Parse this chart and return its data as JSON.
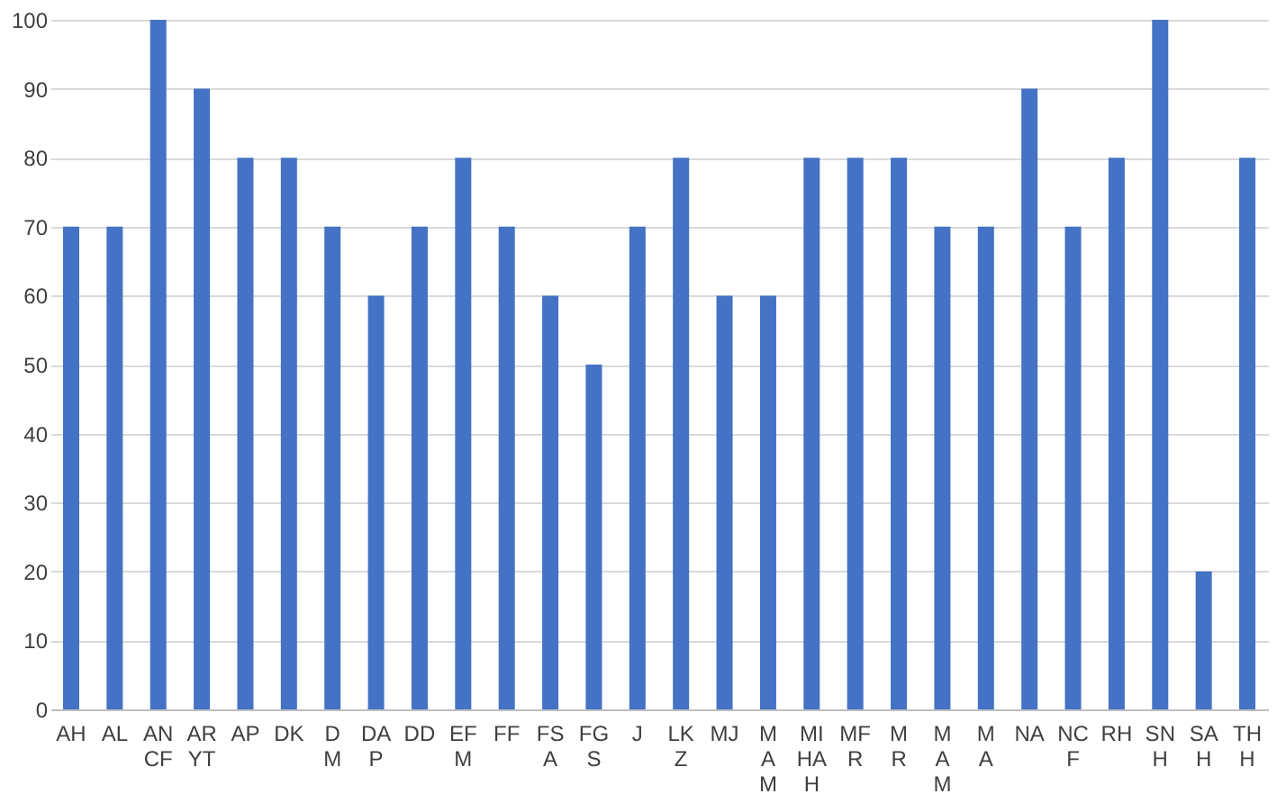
{
  "chart_data": {
    "type": "bar",
    "categories": [
      "AH",
      "AL",
      "AN\nCF",
      "AR\nYT",
      "AP",
      "DK",
      "D\nM",
      "DA\nP",
      "DD",
      "EF\nM",
      "FF",
      "FS\nA",
      "FG\nS",
      "J",
      "LK\nZ",
      "MJ",
      "M\nA\nM",
      "MI\nHA\nH",
      "MF\nR",
      "M\nR",
      "M\nA\nM",
      "M\nA",
      "NA",
      "NC\nF",
      "RH",
      "SN\nH",
      "SA\nH",
      "TH\nH"
    ],
    "values": [
      70,
      70,
      100,
      90,
      80,
      80,
      70,
      60,
      70,
      80,
      70,
      60,
      50,
      70,
      80,
      60,
      60,
      80,
      80,
      80,
      70,
      70,
      90,
      70,
      80,
      100,
      20,
      80
    ],
    "color": "#4472c4",
    "ylim": [
      0,
      100
    ],
    "yticks": [
      0,
      10,
      20,
      30,
      40,
      50,
      60,
      70,
      80,
      90,
      100
    ],
    "grid": "y"
  }
}
